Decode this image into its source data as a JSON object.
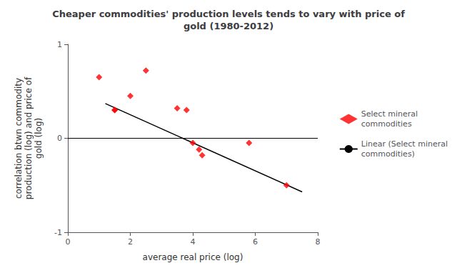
{
  "chart_data": {
    "type": "scatter",
    "title": "Cheaper commodities' production levels tends to vary with price of\ngold (1980-2012)",
    "x_label": "average real price (log)",
    "y_label": "correlation btwn commodity\nproduction (log) and price of\ngold (log)",
    "series": [
      {
        "name": "Select mineral\ncommodities",
        "type": "scatter",
        "color": "#ff0000",
        "marker": "diamond",
        "x": [
          1.0,
          1.5,
          2.0,
          2.5,
          1.5,
          3.5,
          3.8,
          4.0,
          4.2,
          4.3,
          5.8,
          7.0
        ],
        "values": [
          0.65,
          0.3,
          0.45,
          0.72,
          0.3,
          0.32,
          0.3,
          -0.05,
          -0.12,
          -0.18,
          -0.05,
          -0.5
        ]
      },
      {
        "name": "Linear (Select mineral\ncommodities)",
        "type": "line",
        "color": "#000000",
        "line_style": "solid",
        "x": [
          1.2,
          7.5
        ],
        "values": [
          0.37,
          -0.57
        ]
      }
    ],
    "hlines": [
      {
        "y": 0.0,
        "color": "#000000"
      }
    ],
    "xlim": [
      0,
      8
    ],
    "ylim": [
      -1,
      1
    ],
    "xticks": [
      0,
      2,
      4,
      6,
      8
    ],
    "yticks": [
      -1,
      0,
      1
    ],
    "grid": false,
    "legend": "right"
  }
}
